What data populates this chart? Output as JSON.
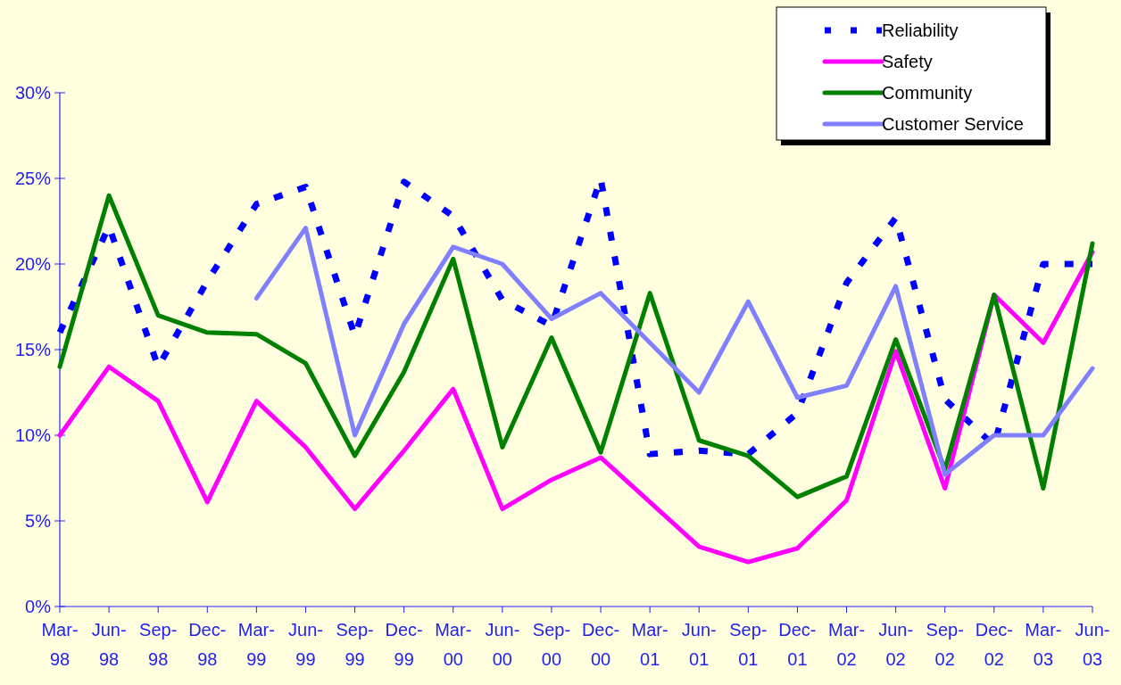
{
  "chart_data": {
    "type": "line",
    "categories": [
      "Mar-98",
      "Jun-98",
      "Sep-98",
      "Dec-98",
      "Mar-99",
      "Jun-99",
      "Sep-99",
      "Dec-99",
      "Mar-00",
      "Jun-00",
      "Sep-00",
      "Dec-00",
      "Mar-01",
      "Jun-01",
      "Sep-01",
      "Dec-01",
      "Mar-02",
      "Jun-02",
      "Sep-02",
      "Dec-02",
      "Mar-03",
      "Jun-03"
    ],
    "series": [
      {
        "name": "Reliability",
        "color": "#0000ff",
        "line_style": "dashed",
        "values": [
          16,
          22.2,
          14,
          19,
          23.5,
          24.5,
          15.8,
          24.8,
          22.8,
          17.9,
          16.4,
          25,
          8.9,
          9.1,
          8.9,
          11.3,
          18.9,
          22.7,
          12.1,
          9.4,
          20,
          20
        ]
      },
      {
        "name": "Safety",
        "color": "#ff00ff",
        "values": [
          10,
          14,
          12,
          6.1,
          12,
          9.3,
          5.7,
          9.1,
          12.7,
          5.7,
          7.4,
          8.7,
          6.1,
          3.5,
          2.6,
          3.4,
          6.2,
          14.9,
          6.9,
          18.2,
          15.4,
          20.7
        ]
      },
      {
        "name": "Community",
        "color": "#008000",
        "values": [
          14,
          24,
          17,
          16,
          15.9,
          14.2,
          8.8,
          13.7,
          20.3,
          9.3,
          15.7,
          9,
          18.3,
          9.7,
          8.8,
          6.4,
          7.6,
          15.6,
          8,
          18.2,
          6.9,
          21.2
        ]
      },
      {
        "name": "Customer Service",
        "color": "#8080ff",
        "values": [
          null,
          null,
          null,
          null,
          18,
          22.1,
          10,
          16.5,
          21,
          20,
          16.8,
          18.3,
          15.4,
          12.5,
          17.8,
          12.2,
          12.9,
          18.7,
          7.7,
          10,
          10,
          13.9
        ]
      }
    ],
    "ylim": [
      0,
      30
    ],
    "yticks": [
      {
        "value": 0,
        "label": "0%"
      },
      {
        "value": 5,
        "label": "5%"
      },
      {
        "value": 10,
        "label": "10%"
      },
      {
        "value": 15,
        "label": "15%"
      },
      {
        "value": 20,
        "label": "20%"
      },
      {
        "value": 25,
        "label": "25%"
      },
      {
        "value": 30,
        "label": "30%"
      }
    ],
    "grid": false,
    "legend": "top right",
    "marker": "none",
    "line_style": "solid"
  }
}
